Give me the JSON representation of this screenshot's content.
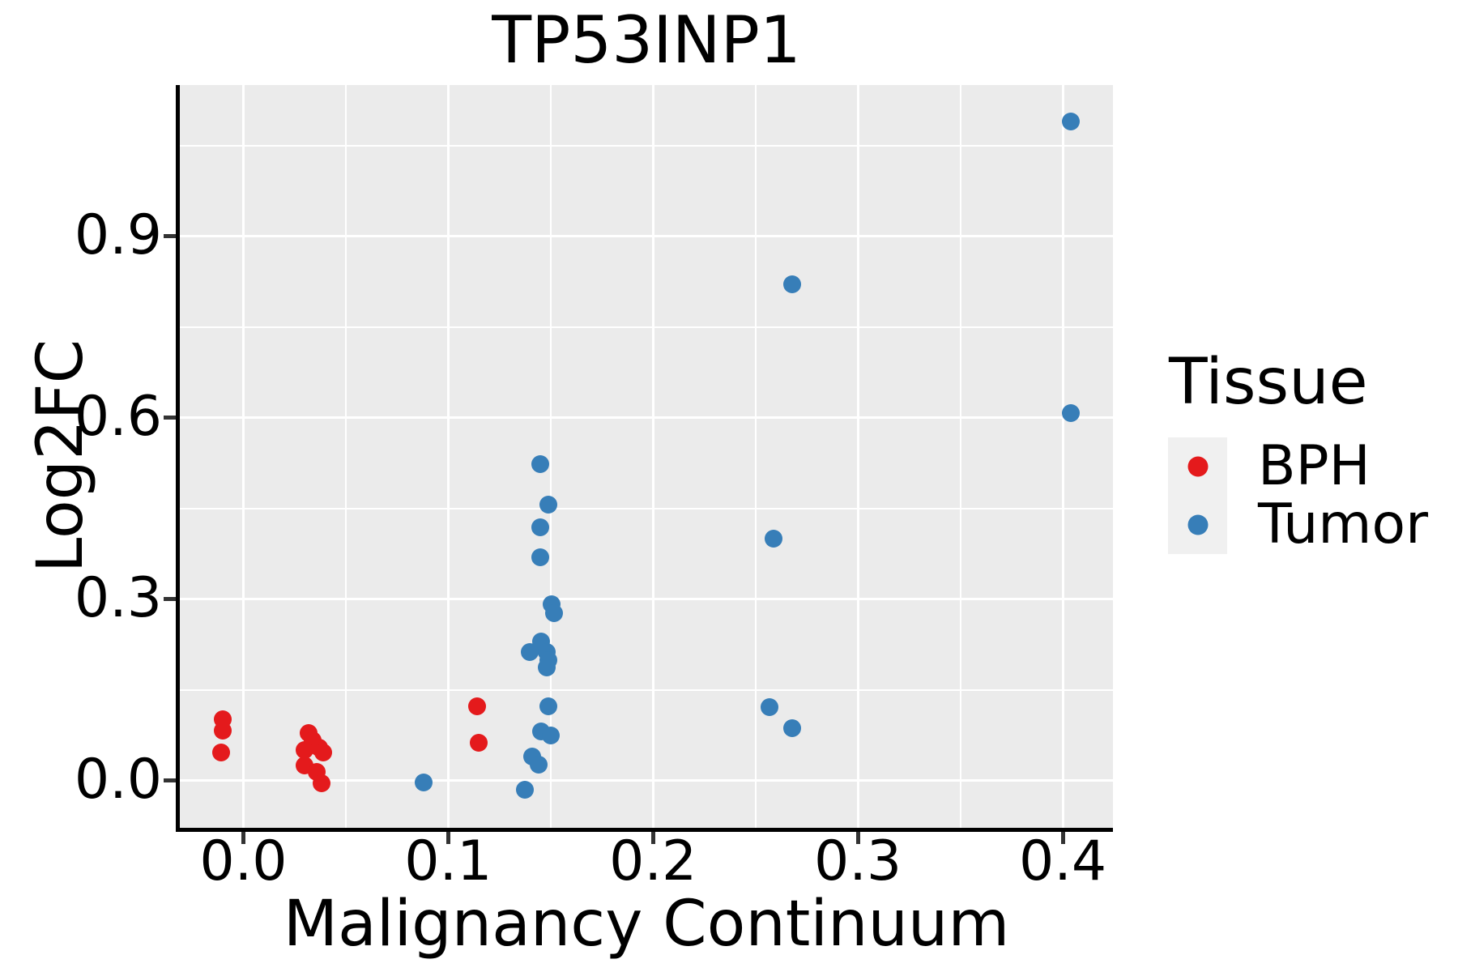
{
  "title": "TP53INP1",
  "chart_data": {
    "type": "scatter",
    "title": "TP53INP1",
    "xlabel": "Malignancy Continuum",
    "ylabel": "Log2FC",
    "xlim": [
      -0.031,
      0.4245
    ],
    "ylim": [
      -0.078,
      1.15
    ],
    "x_ticks": [
      0.0,
      0.1,
      0.2,
      0.3,
      0.4
    ],
    "x_tick_labels": [
      "0.0",
      "0.1",
      "0.2",
      "0.3",
      "0.4"
    ],
    "x_minor_ticks": [
      0.05,
      0.15,
      0.25,
      0.35
    ],
    "y_ticks": [
      0.0,
      0.3,
      0.6,
      0.9
    ],
    "y_tick_labels": [
      "0.0",
      "0.3",
      "0.6",
      "0.9"
    ],
    "y_minor_ticks": [
      0.15,
      0.45,
      0.75,
      1.05
    ],
    "grid": true,
    "panel_bg": "#EBEBEB",
    "grid_color": "#FFFFFF",
    "axis_color": "#000000",
    "tick_color": "#333333",
    "legend": {
      "title": "Tissue",
      "position": "right",
      "key_bg": "#F0F0F0"
    },
    "series": [
      {
        "name": "BPH",
        "color": "#E41A1C",
        "points": [
          [
            -0.01,
            0.102
          ],
          [
            -0.01,
            0.083
          ],
          [
            -0.011,
            0.046
          ],
          [
            0.032,
            0.079
          ],
          [
            0.034,
            0.066
          ],
          [
            0.037,
            0.055
          ],
          [
            0.03,
            0.05
          ],
          [
            0.039,
            0.046
          ],
          [
            0.03,
            0.025
          ],
          [
            0.036,
            0.015
          ],
          [
            0.038,
            -0.005
          ],
          [
            0.114,
            0.123
          ],
          [
            0.115,
            0.062
          ]
        ]
      },
      {
        "name": "Tumor",
        "color": "#377EB8",
        "points": [
          [
            0.088,
            -0.003
          ],
          [
            0.1375,
            -0.015
          ],
          [
            0.141,
            0.04
          ],
          [
            0.144,
            0.027
          ],
          [
            0.1455,
            0.082
          ],
          [
            0.15,
            0.074
          ],
          [
            0.149,
            0.123
          ],
          [
            0.1455,
            0.23
          ],
          [
            0.14,
            0.213
          ],
          [
            0.148,
            0.212
          ],
          [
            0.149,
            0.199
          ],
          [
            0.148,
            0.187
          ],
          [
            0.1505,
            0.292
          ],
          [
            0.1515,
            0.277
          ],
          [
            0.145,
            0.369
          ],
          [
            0.145,
            0.419
          ],
          [
            0.149,
            0.456
          ],
          [
            0.145,
            0.523
          ],
          [
            0.259,
            0.4
          ],
          [
            0.257,
            0.122
          ],
          [
            0.268,
            0.087
          ],
          [
            0.268,
            0.82
          ],
          [
            0.404,
            1.09
          ],
          [
            0.404,
            0.607
          ]
        ]
      }
    ]
  }
}
